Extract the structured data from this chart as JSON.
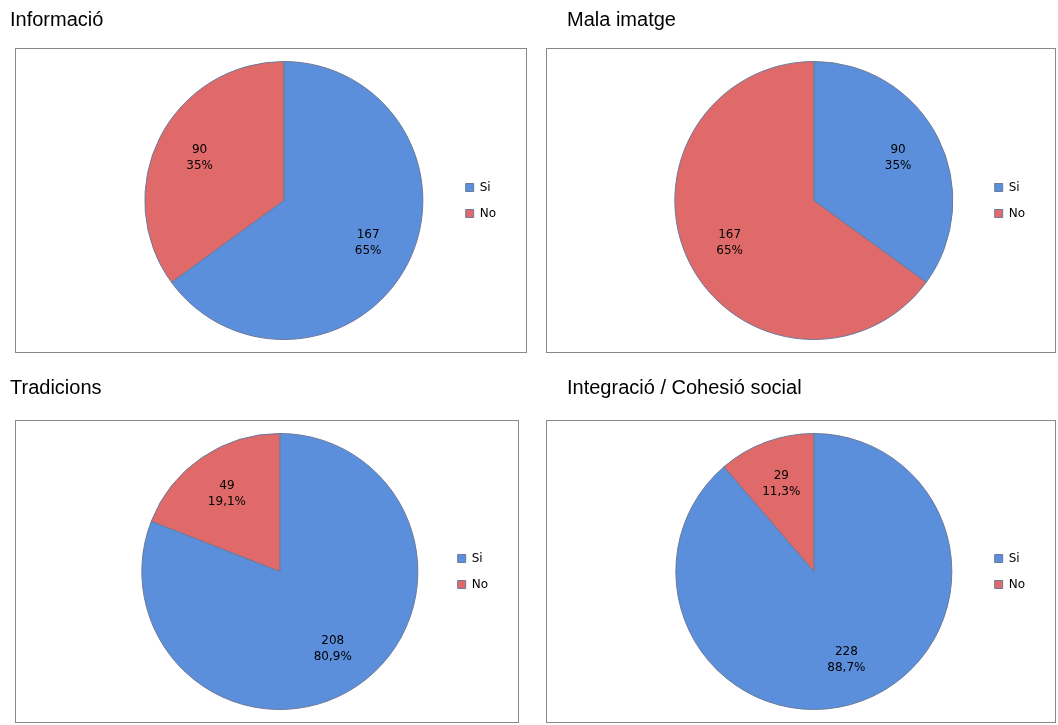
{
  "chart_data": [
    {
      "type": "pie",
      "title": "Informació",
      "categories": [
        "Si",
        "No"
      ],
      "values": [
        167,
        90
      ],
      "colors": [
        "#5b8fdc",
        "#e06a6a"
      ],
      "value_labels": [
        "167\n65%",
        "90\n35%"
      ],
      "legend": "right"
    },
    {
      "type": "pie",
      "title": "Mala imatge",
      "categories": [
        "Si",
        "No"
      ],
      "values": [
        90,
        167
      ],
      "colors": [
        "#5b8fdc",
        "#e06a6a"
      ],
      "value_labels": [
        "90\n35%",
        "167\n65%"
      ],
      "legend": "right"
    },
    {
      "type": "pie",
      "title": "Tradicions",
      "categories": [
        "Si",
        "No"
      ],
      "values": [
        208,
        49
      ],
      "colors": [
        "#5b8fdc",
        "#e06a6a"
      ],
      "value_labels": [
        "208\n80,9%",
        "49\n19,1%"
      ],
      "legend": "right"
    },
    {
      "type": "pie",
      "title": "Integració / Cohesió social",
      "categories": [
        "Si",
        "No"
      ],
      "values": [
        228,
        29
      ],
      "colors": [
        "#5b8fdc",
        "#e06a6a"
      ],
      "value_labels": [
        "228\n88,7%",
        "29\n11,3%"
      ],
      "legend": "right"
    }
  ]
}
